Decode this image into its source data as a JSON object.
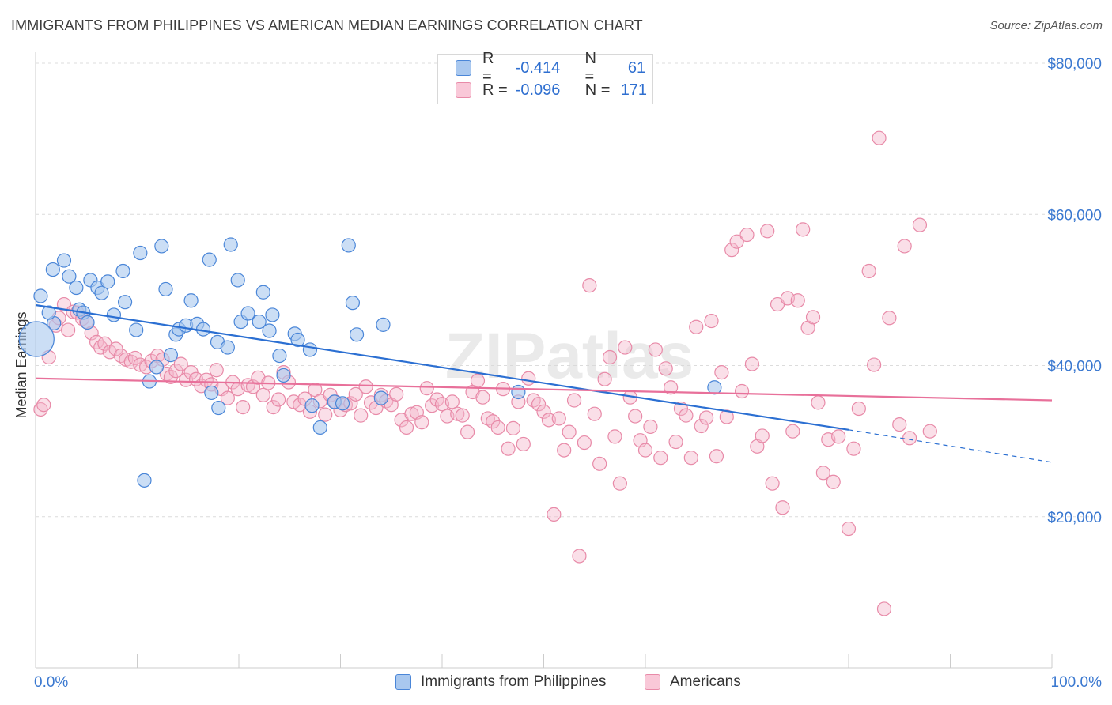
{
  "title": "IMMIGRANTS FROM PHILIPPINES VS AMERICAN MEDIAN EARNINGS CORRELATION CHART",
  "source": "Source: ZipAtlas.com",
  "watermark": "ZIPatlas",
  "colors": {
    "blue_fill": "#a9c8ef",
    "blue_stroke": "#4a86d8",
    "blue_line": "#2b6fd2",
    "pink_fill": "#f5b8cb",
    "pink_stroke": "#e88aa8",
    "pink_line": "#e8709a",
    "axis_text": "#3a78d0",
    "grid": "#dcdcdc"
  },
  "legend": {
    "rows": [
      {
        "r_label": "R =",
        "r_value": "-0.414",
        "n_label": "N =",
        "n_value": "61"
      },
      {
        "r_label": "R =",
        "r_value": "-0.096",
        "n_label": "N =",
        "n_value": "171"
      }
    ]
  },
  "bottom_legend": {
    "series1": "Immigrants from Philippines",
    "series2": "Americans"
  },
  "chart_data": {
    "type": "scatter",
    "title": "IMMIGRANTS FROM PHILIPPINES VS AMERICAN MEDIAN EARNINGS CORRELATION CHART",
    "xlabel": "",
    "ylabel": "Median Earnings",
    "xlim": [
      0,
      100
    ],
    "ylim": [
      0,
      80000
    ],
    "x_tick_labels": [
      "0.0%",
      "100.0%"
    ],
    "y_ticks": [
      20000,
      40000,
      60000,
      80000
    ],
    "y_tick_labels": [
      "$20,000",
      "$40,000",
      "$60,000",
      "$80,000"
    ],
    "grid": true,
    "series": [
      {
        "name": "Immigrants from Philippines",
        "trend": {
          "x0": 0,
          "y0": 48000,
          "x1": 80,
          "y1": 31500,
          "dashed_to_x": 100,
          "dashed_to_y": 27200
        },
        "points": [
          [
            0.5,
            49200
          ],
          [
            1.7,
            52700
          ],
          [
            1.8,
            45600
          ],
          [
            2.8,
            53900
          ],
          [
            3.3,
            51800
          ],
          [
            4.0,
            50300
          ],
          [
            4.3,
            47400
          ],
          [
            4.7,
            47000
          ],
          [
            5.1,
            45700
          ],
          [
            5.4,
            51300
          ],
          [
            6.1,
            50300
          ],
          [
            6.5,
            49600
          ],
          [
            7.1,
            51100
          ],
          [
            7.7,
            46700
          ],
          [
            8.6,
            52500
          ],
          [
            8.8,
            48400
          ],
          [
            9.9,
            44700
          ],
          [
            10.3,
            54900
          ],
          [
            10.7,
            24800
          ],
          [
            11.2,
            37900
          ],
          [
            11.9,
            39800
          ],
          [
            12.4,
            55800
          ],
          [
            12.8,
            50100
          ],
          [
            13.3,
            41400
          ],
          [
            13.8,
            44100
          ],
          [
            14.1,
            44800
          ],
          [
            14.8,
            45300
          ],
          [
            15.3,
            48600
          ],
          [
            15.9,
            45500
          ],
          [
            16.5,
            44800
          ],
          [
            17.1,
            54000
          ],
          [
            17.3,
            36400
          ],
          [
            17.9,
            43100
          ],
          [
            18.0,
            34400
          ],
          [
            18.9,
            42400
          ],
          [
            19.2,
            56000
          ],
          [
            19.9,
            51300
          ],
          [
            20.2,
            45800
          ],
          [
            20.9,
            46900
          ],
          [
            22.0,
            45800
          ],
          [
            22.4,
            49700
          ],
          [
            23.0,
            44600
          ],
          [
            23.3,
            46700
          ],
          [
            24.0,
            41300
          ],
          [
            24.4,
            38700
          ],
          [
            25.5,
            44200
          ],
          [
            25.8,
            43400
          ],
          [
            27.0,
            42100
          ],
          [
            27.2,
            34700
          ],
          [
            28.0,
            31800
          ],
          [
            29.4,
            35200
          ],
          [
            30.2,
            35000
          ],
          [
            30.8,
            55900
          ],
          [
            31.2,
            48300
          ],
          [
            31.6,
            44100
          ],
          [
            34.2,
            45400
          ],
          [
            34.0,
            35700
          ],
          [
            47.5,
            36500
          ],
          [
            66.8,
            37100
          ],
          [
            0.1,
            43500
          ],
          [
            1.3,
            47000
          ]
        ]
      },
      {
        "name": "Americans",
        "trend": {
          "x0": 0,
          "y0": 38300,
          "x1": 100,
          "y1": 35400
        },
        "points": [
          [
            0.5,
            34200
          ],
          [
            0.8,
            34800
          ],
          [
            1.3,
            41100
          ],
          [
            2.0,
            45300
          ],
          [
            2.3,
            46300
          ],
          [
            2.8,
            48100
          ],
          [
            3.2,
            44700
          ],
          [
            3.7,
            47100
          ],
          [
            4.1,
            47000
          ],
          [
            4.6,
            46200
          ],
          [
            5.0,
            45800
          ],
          [
            5.5,
            44300
          ],
          [
            6.0,
            43100
          ],
          [
            6.4,
            42400
          ],
          [
            6.8,
            42900
          ],
          [
            7.3,
            41800
          ],
          [
            7.9,
            42200
          ],
          [
            8.4,
            41300
          ],
          [
            8.9,
            40800
          ],
          [
            9.4,
            40500
          ],
          [
            9.8,
            41000
          ],
          [
            10.3,
            40100
          ],
          [
            10.9,
            39800
          ],
          [
            11.4,
            40600
          ],
          [
            12.0,
            41300
          ],
          [
            12.5,
            40800
          ],
          [
            12.9,
            38900
          ],
          [
            13.3,
            38500
          ],
          [
            13.8,
            39300
          ],
          [
            14.3,
            40200
          ],
          [
            14.8,
            38100
          ],
          [
            15.3,
            39100
          ],
          [
            15.8,
            38200
          ],
          [
            16.3,
            37300
          ],
          [
            16.8,
            38100
          ],
          [
            17.3,
            37500
          ],
          [
            17.8,
            39400
          ],
          [
            18.3,
            36900
          ],
          [
            18.9,
            35700
          ],
          [
            19.4,
            37800
          ],
          [
            19.9,
            36900
          ],
          [
            20.4,
            34500
          ],
          [
            20.9,
            37400
          ],
          [
            21.4,
            37200
          ],
          [
            21.9,
            38400
          ],
          [
            22.4,
            36100
          ],
          [
            22.9,
            37700
          ],
          [
            23.4,
            34500
          ],
          [
            23.9,
            35500
          ],
          [
            24.4,
            39100
          ],
          [
            24.9,
            37800
          ],
          [
            25.4,
            35200
          ],
          [
            26.0,
            34800
          ],
          [
            26.5,
            35600
          ],
          [
            27.0,
            33900
          ],
          [
            27.5,
            36800
          ],
          [
            28.0,
            35300
          ],
          [
            28.5,
            33500
          ],
          [
            29.0,
            36100
          ],
          [
            29.5,
            35200
          ],
          [
            30.0,
            34100
          ],
          [
            30.5,
            34800
          ],
          [
            31.0,
            35000
          ],
          [
            31.5,
            36200
          ],
          [
            32.0,
            33400
          ],
          [
            32.5,
            37200
          ],
          [
            33.0,
            35100
          ],
          [
            33.5,
            34400
          ],
          [
            34.0,
            36100
          ],
          [
            34.5,
            35300
          ],
          [
            35.0,
            34800
          ],
          [
            35.5,
            36200
          ],
          [
            36.0,
            32800
          ],
          [
            36.5,
            31800
          ],
          [
            37.0,
            33600
          ],
          [
            37.5,
            33800
          ],
          [
            38.0,
            32500
          ],
          [
            38.5,
            37000
          ],
          [
            39.0,
            34700
          ],
          [
            39.5,
            35500
          ],
          [
            40.0,
            34900
          ],
          [
            40.5,
            33300
          ],
          [
            41.0,
            35200
          ],
          [
            41.5,
            33600
          ],
          [
            42.0,
            33400
          ],
          [
            42.5,
            31200
          ],
          [
            43.0,
            36500
          ],
          [
            43.5,
            38000
          ],
          [
            44.0,
            35800
          ],
          [
            44.5,
            33000
          ],
          [
            45.0,
            32600
          ],
          [
            45.5,
            31800
          ],
          [
            46.0,
            36900
          ],
          [
            46.5,
            29000
          ],
          [
            47.0,
            31700
          ],
          [
            47.5,
            35200
          ],
          [
            48.0,
            29600
          ],
          [
            48.5,
            38300
          ],
          [
            49.0,
            35400
          ],
          [
            49.5,
            34900
          ],
          [
            50.0,
            33900
          ],
          [
            50.5,
            32800
          ],
          [
            51.0,
            20300
          ],
          [
            51.5,
            33000
          ],
          [
            52.0,
            28800
          ],
          [
            52.5,
            31200
          ],
          [
            53.0,
            35400
          ],
          [
            53.5,
            14800
          ],
          [
            54.0,
            29800
          ],
          [
            54.5,
            50600
          ],
          [
            55.0,
            33600
          ],
          [
            55.5,
            27000
          ],
          [
            56.0,
            38200
          ],
          [
            56.5,
            41100
          ],
          [
            57.0,
            30600
          ],
          [
            57.5,
            24400
          ],
          [
            58.0,
            42400
          ],
          [
            58.5,
            35800
          ],
          [
            59.0,
            33300
          ],
          [
            59.5,
            30100
          ],
          [
            60.0,
            28800
          ],
          [
            60.5,
            31900
          ],
          [
            61.0,
            42100
          ],
          [
            61.5,
            27800
          ],
          [
            62.0,
            39600
          ],
          [
            62.5,
            37100
          ],
          [
            63.0,
            29900
          ],
          [
            63.5,
            34300
          ],
          [
            64.0,
            33400
          ],
          [
            64.5,
            27800
          ],
          [
            65.0,
            45100
          ],
          [
            65.5,
            32000
          ],
          [
            66.0,
            33100
          ],
          [
            66.5,
            45900
          ],
          [
            67.0,
            28000
          ],
          [
            67.5,
            39100
          ],
          [
            68.0,
            33200
          ],
          [
            68.5,
            55300
          ],
          [
            69.0,
            56400
          ],
          [
            69.5,
            36600
          ],
          [
            70.0,
            57300
          ],
          [
            70.5,
            40200
          ],
          [
            71.0,
            29300
          ],
          [
            71.5,
            30700
          ],
          [
            72.0,
            57800
          ],
          [
            72.5,
            24400
          ],
          [
            73.0,
            48100
          ],
          [
            73.5,
            21200
          ],
          [
            74.0,
            48900
          ],
          [
            74.5,
            31300
          ],
          [
            75.0,
            48600
          ],
          [
            75.5,
            58000
          ],
          [
            76.0,
            45000
          ],
          [
            76.5,
            46400
          ],
          [
            77.0,
            35100
          ],
          [
            77.5,
            25800
          ],
          [
            78.0,
            30200
          ],
          [
            78.5,
            24600
          ],
          [
            79.0,
            30600
          ],
          [
            80.0,
            18400
          ],
          [
            80.5,
            29000
          ],
          [
            81.0,
            34300
          ],
          [
            82.0,
            52500
          ],
          [
            82.5,
            40100
          ],
          [
            83.0,
            70100
          ],
          [
            83.5,
            7800
          ],
          [
            84.0,
            46300
          ],
          [
            85.0,
            32200
          ],
          [
            85.5,
            55800
          ],
          [
            86.0,
            30400
          ],
          [
            87.0,
            58600
          ],
          [
            88.0,
            31300
          ]
        ]
      }
    ]
  }
}
